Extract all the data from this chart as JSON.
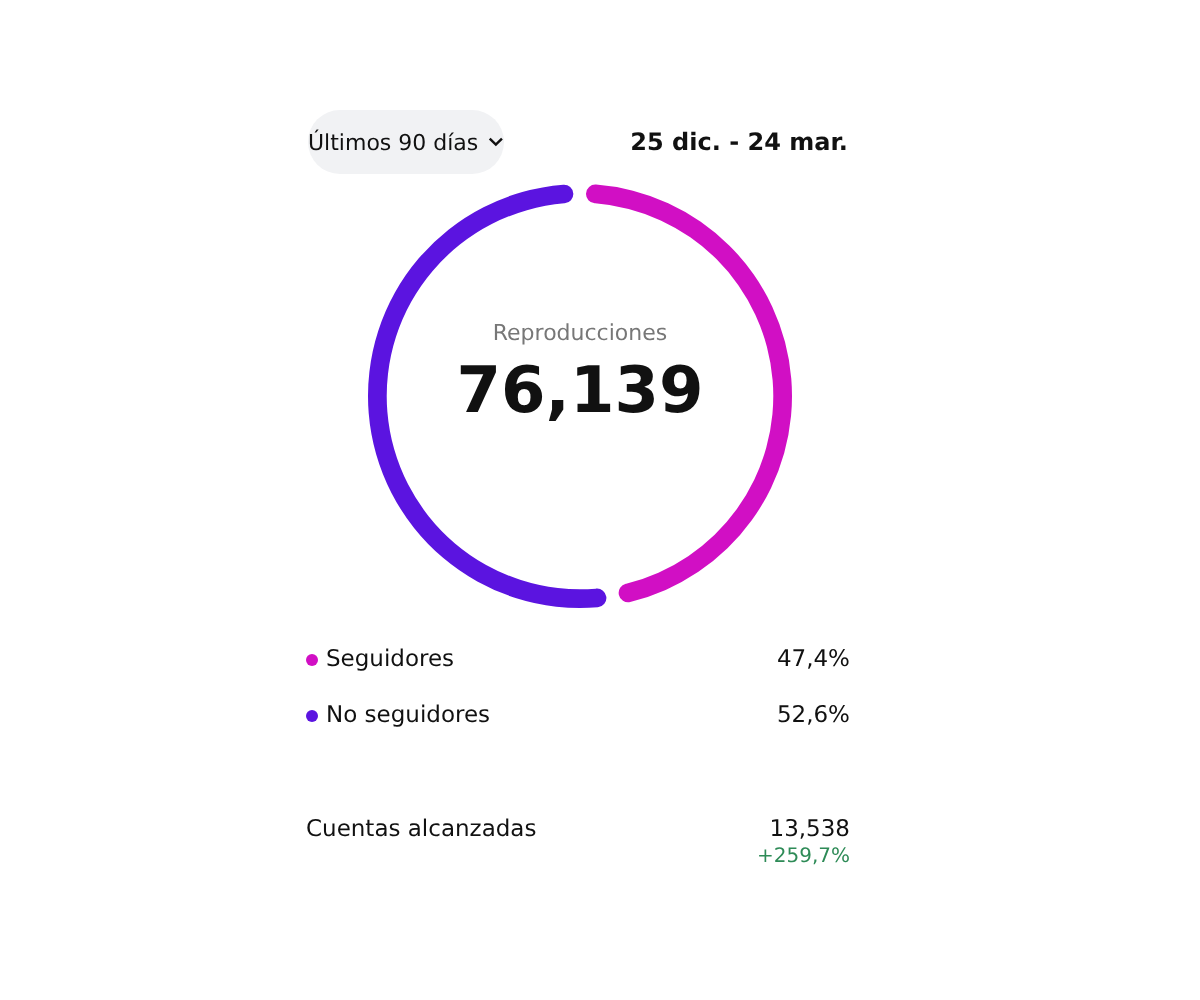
{
  "chart_data": {
    "type": "donut",
    "title": "Reproducciones",
    "subtitle": "76,139",
    "categories": [
      "Seguidores",
      "No seguidores"
    ],
    "values": [
      47.4,
      52.6
    ],
    "colors": [
      "#d10fc4",
      "#5b14e0"
    ],
    "value_labels": [
      "47,4%",
      "52,6%"
    ],
    "legend": "bottom",
    "annotations": [
      "Últimos 90 días",
      "25 dic. - 24 mar.",
      "Cuentas alcanzadas",
      "13,538",
      "+259,7%"
    ]
  }
}
